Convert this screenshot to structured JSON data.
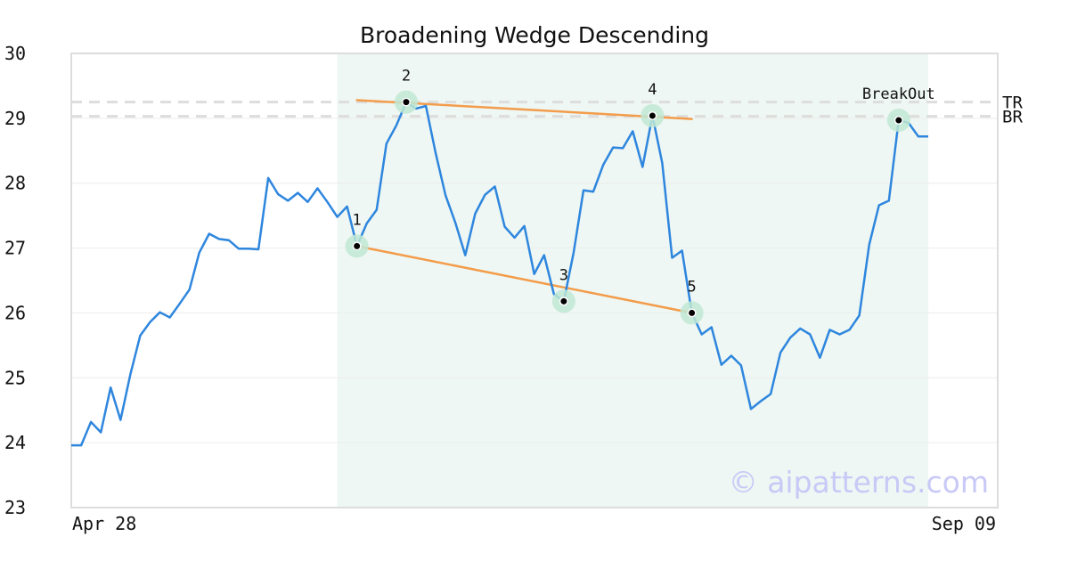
{
  "chart_data": {
    "type": "line",
    "title": "Broadening Wedge Descending",
    "ylim": [
      23,
      30
    ],
    "yticks": [
      "23",
      "24",
      "25",
      "26",
      "27",
      "28",
      "29",
      "30"
    ],
    "x_labels": {
      "start": "Apr 28",
      "end": "Sep 09"
    },
    "grid": true,
    "series": [
      {
        "values": [
          23.96,
          23.96,
          24.32,
          24.16,
          24.85,
          24.35,
          25.05,
          25.65,
          25.86,
          26.01,
          25.93,
          26.14,
          26.36,
          26.93,
          27.22,
          27.14,
          27.12,
          26.99,
          26.99,
          26.98,
          28.08,
          27.83,
          27.73,
          27.85,
          27.71,
          27.92,
          27.71,
          27.48,
          27.64,
          27.03,
          27.38,
          27.59,
          28.61,
          28.89,
          29.25,
          29.15,
          29.19,
          28.46,
          27.81,
          27.39,
          26.89,
          27.53,
          27.82,
          27.95,
          27.33,
          27.16,
          27.34,
          26.6,
          26.89,
          26.29,
          26.18,
          26.93,
          27.89,
          27.87,
          28.28,
          28.55,
          28.54,
          28.8,
          28.25,
          29.04,
          28.31,
          26.85,
          26.96,
          26.0,
          25.67,
          25.78,
          25.2,
          25.34,
          25.19,
          24.52,
          24.64,
          24.75,
          25.39,
          25.62,
          25.76,
          25.67,
          25.31,
          25.74,
          25.67,
          25.74,
          25.96,
          27.05,
          27.66,
          27.73,
          28.97,
          28.93,
          28.72,
          28.72
        ]
      }
    ],
    "highlight_range": [
      27,
      87
    ],
    "pivots": [
      {
        "label": "1",
        "index": 29,
        "value": 27.03
      },
      {
        "label": "2",
        "index": 34,
        "value": 29.25
      },
      {
        "label": "3",
        "index": 50,
        "value": 26.18
      },
      {
        "label": "4",
        "index": 59,
        "value": 29.04
      },
      {
        "label": "5",
        "index": 63,
        "value": 26.0
      },
      {
        "label": "BreakOut",
        "index": 84,
        "value": 28.97
      }
    ],
    "trendlines": [
      {
        "name": "upper",
        "from": {
          "index": 29,
          "value": 29.28
        },
        "to": {
          "index": 63,
          "value": 28.99
        }
      },
      {
        "name": "lower",
        "from": {
          "index": 29,
          "value": 27.03
        },
        "to": {
          "index": 63,
          "value": 26.0
        }
      }
    ],
    "reference_lines": [
      {
        "label": "TR",
        "value": 29.25
      },
      {
        "label": "BR",
        "value": 29.03
      }
    ],
    "colors": {
      "line": "#2e86de",
      "trend": "#f39c4b",
      "pivot_ring": "#bfe8d4",
      "highlight": "#eef7f3",
      "reference": "#dddddd",
      "grid": "#ececec",
      "frame": "#dddddd"
    },
    "watermark": "© aipatterns.com"
  }
}
